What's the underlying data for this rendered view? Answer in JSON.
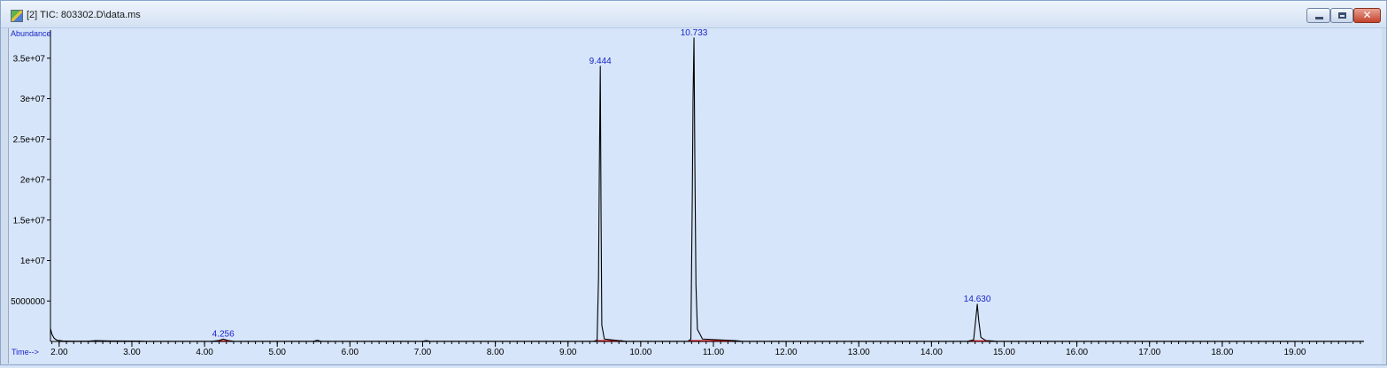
{
  "window": {
    "title": "[2] TIC: 803302.D\\data.ms"
  },
  "chart_data": {
    "type": "line",
    "ylabel": "Abundance",
    "xlabel": "Time-->",
    "xlim": [
      1.88,
      19.95
    ],
    "ylim": [
      0,
      37600000
    ],
    "y_ticks": [
      {
        "value": 5000000,
        "label": "5000000"
      },
      {
        "value": 10000000,
        "label": "1e+07"
      },
      {
        "value": 15000000,
        "label": "1.5e+07"
      },
      {
        "value": 20000000,
        "label": "2e+07"
      },
      {
        "value": 25000000,
        "label": "2.5e+07"
      },
      {
        "value": 30000000,
        "label": "3e+07"
      },
      {
        "value": 35000000,
        "label": "3.5e+07"
      }
    ],
    "x_ticks": [
      {
        "value": 2,
        "label": "2.00"
      },
      {
        "value": 3,
        "label": "3.00"
      },
      {
        "value": 4,
        "label": "4.00"
      },
      {
        "value": 5,
        "label": "5.00"
      },
      {
        "value": 6,
        "label": "6.00"
      },
      {
        "value": 7,
        "label": "7.00"
      },
      {
        "value": 8,
        "label": "8.00"
      },
      {
        "value": 9,
        "label": "9.00"
      },
      {
        "value": 10,
        "label": "10.00"
      },
      {
        "value": 11,
        "label": "11.00"
      },
      {
        "value": 12,
        "label": "12.00"
      },
      {
        "value": 13,
        "label": "13.00"
      },
      {
        "value": 14,
        "label": "14.00"
      },
      {
        "value": 15,
        "label": "15.00"
      },
      {
        "value": 16,
        "label": "16.00"
      },
      {
        "value": 17,
        "label": "17.00"
      },
      {
        "value": 18,
        "label": "18.00"
      },
      {
        "value": 19,
        "label": "19.00"
      }
    ],
    "x_minor_step": 0.1,
    "peaks": [
      {
        "rt": 4.256,
        "label": "4.256",
        "height": 300000
      },
      {
        "rt": 9.444,
        "label": "9.444",
        "height": 34000000
      },
      {
        "rt": 10.733,
        "label": "10.733",
        "height": 37500000
      },
      {
        "rt": 14.63,
        "label": "14.630",
        "height": 4600000
      }
    ],
    "series": [
      {
        "line_color": "#000000",
        "points": [
          [
            1.88,
            1600000
          ],
          [
            1.9,
            900000
          ],
          [
            1.93,
            400000
          ],
          [
            1.97,
            150000
          ],
          [
            2.05,
            60000
          ],
          [
            2.2,
            30000
          ],
          [
            2.4,
            30000
          ],
          [
            2.5,
            100000
          ],
          [
            2.7,
            60000
          ],
          [
            3.1,
            50000
          ],
          [
            3.2,
            20000
          ],
          [
            4.1,
            20000
          ],
          [
            4.2,
            120000
          ],
          [
            4.256,
            300000
          ],
          [
            4.32,
            120000
          ],
          [
            4.4,
            20000
          ],
          [
            5.5,
            20000
          ],
          [
            5.55,
            150000
          ],
          [
            5.6,
            20000
          ],
          [
            7.0,
            20000
          ],
          [
            7.05,
            100000
          ],
          [
            7.1,
            20000
          ],
          [
            9.35,
            20000
          ],
          [
            9.4,
            150000
          ],
          [
            9.42,
            8000000
          ],
          [
            9.43,
            20000000
          ],
          [
            9.444,
            34000000
          ],
          [
            9.455,
            15000000
          ],
          [
            9.465,
            2000000
          ],
          [
            9.5,
            300000
          ],
          [
            9.7,
            100000
          ],
          [
            9.8,
            20000
          ],
          [
            10.65,
            20000
          ],
          [
            10.69,
            300000
          ],
          [
            10.71,
            18000000
          ],
          [
            10.72,
            30000000
          ],
          [
            10.733,
            37500000
          ],
          [
            10.745,
            22000000
          ],
          [
            10.76,
            7000000
          ],
          [
            10.78,
            1500000
          ],
          [
            10.85,
            300000
          ],
          [
            11.3,
            100000
          ],
          [
            11.4,
            20000
          ],
          [
            14.5,
            20000
          ],
          [
            14.58,
            200000
          ],
          [
            14.61,
            2800000
          ],
          [
            14.63,
            4600000
          ],
          [
            14.65,
            2600000
          ],
          [
            14.68,
            500000
          ],
          [
            14.75,
            100000
          ],
          [
            14.9,
            20000
          ],
          [
            19.95,
            20000
          ]
        ]
      }
    ],
    "baselines": {
      "line_color": "#c00000",
      "segments": [
        [
          [
            4.18,
            100000
          ],
          [
            4.36,
            60000
          ]
        ],
        [
          [
            9.38,
            100000
          ],
          [
            9.75,
            80000
          ]
        ],
        [
          [
            10.66,
            100000
          ],
          [
            11.25,
            80000
          ]
        ],
        [
          [
            14.52,
            80000
          ],
          [
            14.85,
            60000
          ]
        ]
      ]
    },
    "grid": false
  }
}
